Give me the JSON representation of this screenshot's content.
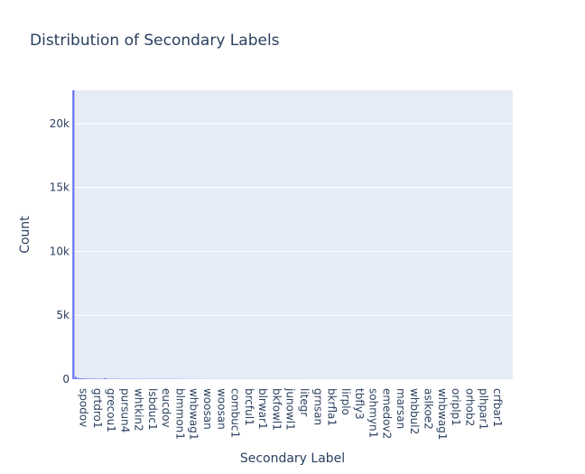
{
  "chart_data": {
    "type": "bar",
    "title": "Distribution of Secondary Labels",
    "xlabel": "Secondary Label",
    "ylabel": "Count",
    "ylim": [
      0,
      22600
    ],
    "y_ticks": [
      0,
      5000,
      10000,
      15000,
      20000
    ],
    "y_tick_labels": [
      "0",
      "5k",
      "10k",
      "15k",
      "20k"
    ],
    "grid": true,
    "x_tick_labels": [
      "spodov",
      "grtdro1",
      "grecou1",
      "pursun4",
      "whtkin2",
      "lsbduc1",
      "eucdov",
      "blmmon1",
      "whbwag1",
      "woosan",
      "woosan",
      "combuc1",
      "brcful1",
      "blrwar1",
      "bkfowl1",
      "junowl1",
      "litegr",
      "grnsan",
      "bkrfla1",
      "lirplo",
      "tbfly3",
      "sohmyn1",
      "emedov2",
      "marsan",
      "whbbul2",
      "aslkoe2",
      "whbwag1",
      "oriplp1",
      "orhob2",
      "plhpar1",
      "crfbar1"
    ],
    "categories_count": 182,
    "values": [
      22600,
      180,
      90,
      70,
      60,
      55,
      50,
      45,
      45,
      40,
      40,
      38,
      35,
      80,
      35,
      33,
      30,
      30,
      28,
      28,
      27,
      25,
      25,
      24,
      24,
      23,
      22,
      22,
      21,
      20,
      20,
      20,
      19,
      19,
      18,
      18,
      17,
      17,
      16,
      16,
      16,
      15,
      15,
      15,
      14,
      14,
      14,
      13,
      13,
      13,
      12,
      12,
      12,
      12,
      11,
      11,
      11,
      11,
      10,
      10,
      10,
      10,
      10,
      9,
      9,
      9,
      9,
      9,
      8,
      8,
      8,
      8,
      8,
      8,
      7,
      7,
      7,
      7,
      7,
      7,
      7,
      6,
      6,
      6,
      6,
      6,
      6,
      6,
      6,
      5,
      5,
      5,
      5,
      5,
      5,
      5,
      5,
      5,
      5,
      4,
      4,
      4,
      4,
      4,
      4,
      4,
      4,
      4,
      4,
      4,
      4,
      3,
      3,
      3,
      3,
      3,
      3,
      3,
      3,
      3,
      3,
      3,
      3,
      3,
      3,
      3,
      2,
      2,
      2,
      2,
      2,
      2,
      2,
      2,
      2,
      2,
      2,
      2,
      2,
      2,
      2,
      2,
      2,
      2,
      2,
      2,
      2,
      1,
      1,
      1,
      1,
      1,
      1,
      1,
      1,
      1,
      1,
      1,
      1,
      1,
      1,
      1,
      1,
      1,
      1,
      1,
      1,
      1,
      1,
      1,
      1,
      1,
      1,
      1,
      1,
      1,
      1,
      1,
      1,
      1,
      1,
      1
    ]
  },
  "colors": {
    "plot_bg": "#e5ecf6",
    "grid": "#ffffff",
    "bar": "#636efa",
    "text": "#2a3f5f"
  }
}
